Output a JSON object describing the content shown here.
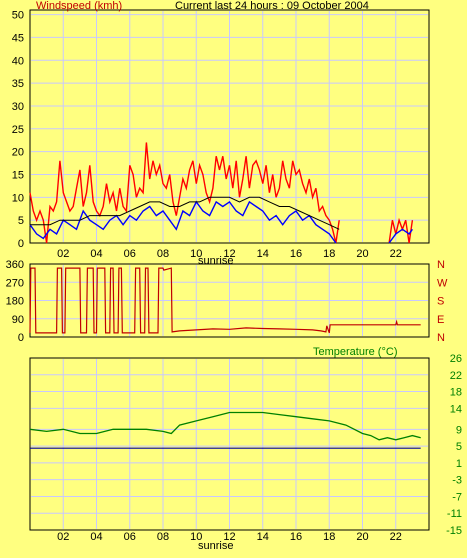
{
  "header": {
    "wind_title": "Windspeed (kmh)",
    "current_title": "Current last 24 hours : 09 October 2004",
    "temp_title": "Temperature (°C)",
    "sunrise_label": "sunrise"
  },
  "colors": {
    "background": "#ffff80",
    "plot_border": "#000000",
    "grid": "#c8c8ff",
    "wind_gust": "#ff0000",
    "wind_avg": "#0000ff",
    "wind_band": "#000000",
    "direction": "#c00000",
    "temperature": "#008000",
    "dewpoint": "#0000a0",
    "wind_title_color": "#c00000",
    "temp_title_color": "#008000"
  },
  "chart_data": [
    {
      "type": "line",
      "name": "windspeed",
      "title": "Windspeed (kmh)",
      "x_ticks": [
        "02",
        "04",
        "06",
        "08",
        "10",
        "12",
        "14",
        "16",
        "18",
        "20",
        "22"
      ],
      "x_tick_hours": [
        2,
        4,
        6,
        8,
        10,
        12,
        14,
        16,
        18,
        20,
        22
      ],
      "xlim": [
        0,
        24
      ],
      "y_ticks": [
        "0",
        "5",
        "10",
        "15",
        "20",
        "25",
        "30",
        "35",
        "40",
        "45",
        "50"
      ],
      "ylim": [
        0,
        51
      ],
      "grid": true,
      "series": [
        {
          "name": "gust",
          "x": [
            0.0,
            0.2,
            0.4,
            0.6,
            0.8,
            1.0,
            1.2,
            1.4,
            1.6,
            1.8,
            2.0,
            2.2,
            2.4,
            2.6,
            2.8,
            3.0,
            3.2,
            3.4,
            3.6,
            3.8,
            4.0,
            4.2,
            4.4,
            4.6,
            4.8,
            5.0,
            5.2,
            5.4,
            5.6,
            5.8,
            6.0,
            6.2,
            6.4,
            6.6,
            6.8,
            7.0,
            7.2,
            7.4,
            7.6,
            7.8,
            8.0,
            8.2,
            8.4,
            8.6,
            8.8,
            9.0,
            9.2,
            9.4,
            9.6,
            9.8,
            10.0,
            10.2,
            10.4,
            10.6,
            10.8,
            11.0,
            11.2,
            11.4,
            11.6,
            11.8,
            12.0,
            12.2,
            12.4,
            12.6,
            12.8,
            13.0,
            13.2,
            13.4,
            13.6,
            13.8,
            14.0,
            14.2,
            14.4,
            14.6,
            14.8,
            15.0,
            15.2,
            15.4,
            15.6,
            15.8,
            16.0,
            16.2,
            16.4,
            16.6,
            16.8,
            17.0,
            17.2,
            17.4,
            17.6,
            17.8,
            18.0,
            18.2,
            18.4,
            18.6
          ],
          "values": [
            11,
            7,
            5,
            7,
            5,
            0,
            8,
            7,
            9,
            18,
            11,
            9,
            7,
            8,
            12,
            16,
            8,
            11,
            17,
            9,
            7,
            6,
            8,
            13,
            9,
            11,
            7,
            12,
            8,
            7,
            17,
            15,
            10,
            12,
            11,
            22,
            14,
            18,
            15,
            17,
            13,
            12,
            15,
            9,
            6,
            10,
            14,
            12,
            16,
            18,
            13,
            17,
            15,
            11,
            9,
            12,
            19,
            16,
            19,
            14,
            17,
            12,
            18,
            10,
            14,
            19,
            12,
            17,
            18,
            16,
            13,
            17,
            11,
            15,
            10,
            12,
            18,
            14,
            12,
            18,
            15,
            16,
            13,
            11,
            14,
            10,
            12,
            7,
            8,
            6,
            5,
            3,
            0,
            5
          ]
        },
        {
          "name": "gust_late",
          "x": [
            21.6,
            21.8,
            22.0,
            22.2,
            22.4,
            22.6,
            22.8,
            23.0
          ],
          "values": [
            0,
            5,
            2,
            5,
            3,
            5,
            0,
            5
          ]
        },
        {
          "name": "average",
          "x": [
            0.0,
            0.4,
            0.8,
            1.2,
            1.6,
            2.0,
            2.4,
            2.8,
            3.2,
            3.6,
            4.0,
            4.4,
            4.8,
            5.2,
            5.6,
            6.0,
            6.4,
            6.8,
            7.2,
            7.6,
            8.0,
            8.4,
            8.8,
            9.2,
            9.6,
            10.0,
            10.4,
            10.8,
            11.2,
            11.6,
            12.0,
            12.4,
            12.8,
            13.2,
            13.6,
            14.0,
            14.4,
            14.8,
            15.2,
            15.6,
            16.0,
            16.4,
            16.8,
            17.2,
            17.6,
            18.0,
            18.4
          ],
          "values": [
            4,
            2,
            1,
            3,
            2,
            5,
            4,
            3,
            7,
            5,
            4,
            3,
            5,
            6,
            4,
            6,
            5,
            7,
            8,
            6,
            7,
            5,
            3,
            7,
            6,
            9,
            7,
            6,
            9,
            8,
            9,
            7,
            6,
            9,
            8,
            7,
            5,
            6,
            4,
            6,
            7,
            5,
            6,
            4,
            3,
            2,
            0
          ]
        },
        {
          "name": "average_late",
          "x": [
            21.6,
            22.0,
            22.4,
            22.8,
            23.0
          ],
          "values": [
            0,
            2,
            3,
            2,
            3
          ]
        },
        {
          "name": "band",
          "x": [
            0.0,
            0.6,
            1.2,
            1.8,
            2.4,
            3.0,
            3.6,
            4.2,
            4.8,
            5.4,
            6.0,
            6.6,
            7.2,
            7.8,
            8.4,
            9.0,
            9.6,
            10.2,
            10.8,
            11.4,
            12.0,
            12.6,
            13.2,
            13.8,
            14.4,
            15.0,
            15.6,
            16.2,
            16.8,
            17.4,
            18.0,
            18.6
          ],
          "values": [
            4,
            4,
            4,
            5,
            5,
            5,
            6,
            6,
            6,
            6,
            7,
            8,
            9,
            9,
            8,
            8,
            9,
            9,
            10,
            10,
            10,
            9,
            10,
            10,
            9,
            8,
            8,
            7,
            6,
            5,
            4,
            3
          ]
        }
      ]
    },
    {
      "type": "line",
      "name": "direction",
      "x_ticks": [],
      "xlim": [
        0,
        24
      ],
      "y_ticks": [
        "0",
        "90",
        "180",
        "270",
        "360"
      ],
      "y_ticks_right": [
        "N",
        "E",
        "S",
        "W",
        "N"
      ],
      "ylim": [
        0,
        360
      ],
      "grid": true,
      "series": [
        {
          "name": "direction",
          "x": [
            0.0,
            0.05,
            0.3,
            0.35,
            1.6,
            1.65,
            1.9,
            1.95,
            2.1,
            2.15,
            3.0,
            3.05,
            3.4,
            3.45,
            3.8,
            3.85,
            4.0,
            4.05,
            4.5,
            4.55,
            4.8,
            4.85,
            5.0,
            5.05,
            5.3,
            5.35,
            5.5,
            5.55,
            6.3,
            6.35,
            6.6,
            6.65,
            6.9,
            6.95,
            7.1,
            7.15,
            7.7,
            7.75,
            8.0,
            8.05,
            8.5,
            8.55,
            9.0,
            10.0,
            11.0,
            12.0,
            13.0,
            14.0,
            15.0,
            16.0,
            17.0,
            17.5,
            17.8,
            17.85,
            18.0,
            18.05,
            21.5,
            22.0,
            22.05,
            22.1,
            23.5
          ],
          "values": [
            20,
            340,
            340,
            20,
            20,
            340,
            340,
            20,
            20,
            340,
            340,
            20,
            20,
            340,
            340,
            20,
            20,
            340,
            340,
            20,
            20,
            340,
            340,
            20,
            20,
            340,
            340,
            20,
            20,
            340,
            340,
            20,
            20,
            340,
            340,
            20,
            20,
            340,
            340,
            330,
            340,
            25,
            30,
            35,
            40,
            38,
            45,
            42,
            40,
            38,
            35,
            30,
            25,
            55,
            20,
            60,
            60,
            60,
            75,
            60,
            60
          ]
        }
      ]
    },
    {
      "type": "line",
      "name": "temperature",
      "title": "Temperature (°C)",
      "x_ticks": [
        "02",
        "04",
        "06",
        "08",
        "10",
        "12",
        "14",
        "16",
        "18",
        "20",
        "22"
      ],
      "x_tick_hours": [
        2,
        4,
        6,
        8,
        10,
        12,
        14,
        16,
        18,
        20,
        22
      ],
      "xlim": [
        0,
        24
      ],
      "y_ticks": [
        "26",
        "22",
        "18",
        "14",
        "9",
        "5",
        "1",
        "-3",
        "-7",
        "-11",
        "-15"
      ],
      "ylim": [
        -15,
        26
      ],
      "grid": true,
      "series": [
        {
          "name": "temperature",
          "x": [
            0.0,
            1.0,
            2.0,
            3.0,
            4.0,
            5.0,
            6.0,
            7.0,
            8.0,
            8.5,
            9.0,
            10.0,
            11.0,
            12.0,
            13.0,
            14.0,
            15.0,
            16.0,
            17.0,
            18.0,
            19.0,
            20.0,
            20.5,
            21.0,
            21.5,
            22.0,
            22.5,
            23.0,
            23.5
          ],
          "values": [
            9,
            8.5,
            9,
            8,
            8,
            9,
            9,
            9,
            8.5,
            8,
            10,
            11,
            12,
            13,
            13,
            13,
            12.5,
            12,
            11.5,
            11,
            10,
            8,
            7.5,
            6.5,
            7,
            6.5,
            7,
            7.5,
            7
          ]
        },
        {
          "name": "dewpoint",
          "x": [
            0,
            23.5
          ],
          "values": [
            4.5,
            4.5
          ]
        }
      ]
    }
  ]
}
